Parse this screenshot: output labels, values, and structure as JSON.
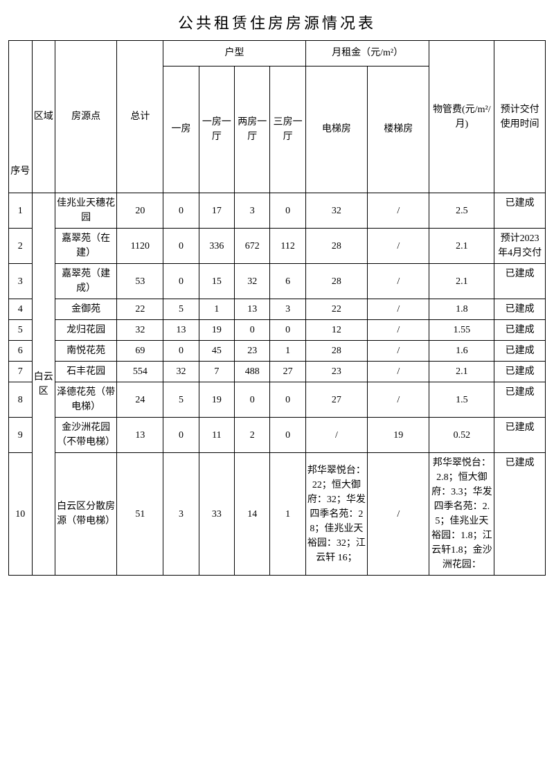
{
  "title": "公共租赁住房房源情况表",
  "headers": {
    "seq": "序号",
    "area": "区域",
    "source": "房源点",
    "total": "总计",
    "room_type_group": "户型",
    "rt1": "一房",
    "rt2": "一房一厅",
    "rt3": "两房一厅",
    "rt4": "三房一厅",
    "rent_group": "月租金（元/m²）",
    "rent_elev": "电梯房",
    "rent_stair": "楼梯房",
    "mgmt_fee": "物管费(元/m²/月)",
    "delivery": "预计交付使用时间"
  },
  "area_label": "白云区",
  "rows": [
    {
      "seq": "1",
      "source": "佳兆业天穗花园",
      "total": "20",
      "rt1": "0",
      "rt2": "17",
      "rt3": "3",
      "rt4": "0",
      "elev": "32",
      "stair": "/",
      "mgmt": "2.5",
      "time": "已建成"
    },
    {
      "seq": "2",
      "source": "嘉翠苑（在建）",
      "total": "1120",
      "rt1": "0",
      "rt2": "336",
      "rt3": "672",
      "rt4": "112",
      "elev": "28",
      "stair": "/",
      "mgmt": "2.1",
      "time": "预计2023年4月交付"
    },
    {
      "seq": "3",
      "source": "嘉翠苑（建成）",
      "total": "53",
      "rt1": "0",
      "rt2": "15",
      "rt3": "32",
      "rt4": "6",
      "elev": "28",
      "stair": "/",
      "mgmt": "2.1",
      "time": "已建成"
    },
    {
      "seq": "4",
      "source": "金御苑",
      "total": "22",
      "rt1": "5",
      "rt2": "1",
      "rt3": "13",
      "rt4": "3",
      "elev": "22",
      "stair": "/",
      "mgmt": "1.8",
      "time": "已建成"
    },
    {
      "seq": "5",
      "source": "龙归花园",
      "total": "32",
      "rt1": "13",
      "rt2": "19",
      "rt3": "0",
      "rt4": "0",
      "elev": "12",
      "stair": "/",
      "mgmt": "1.55",
      "time": "已建成"
    },
    {
      "seq": "6",
      "source": "南悦花苑",
      "total": "69",
      "rt1": "0",
      "rt2": "45",
      "rt3": "23",
      "rt4": "1",
      "elev": "28",
      "stair": "/",
      "mgmt": "1.6",
      "time": "已建成"
    },
    {
      "seq": "7",
      "source": "石丰花园",
      "total": "554",
      "rt1": "32",
      "rt2": "7",
      "rt3": "488",
      "rt4": "27",
      "elev": "23",
      "stair": "/",
      "mgmt": "2.1",
      "time": "已建成"
    },
    {
      "seq": "8",
      "source": "泽德花苑（带电梯）",
      "total": "24",
      "rt1": "5",
      "rt2": "19",
      "rt3": "0",
      "rt4": "0",
      "elev": "27",
      "stair": "/",
      "mgmt": "1.5",
      "time": "已建成"
    },
    {
      "seq": "9",
      "source": "金沙洲花园（不带电梯）",
      "total": "13",
      "rt1": "0",
      "rt2": "11",
      "rt3": "2",
      "rt4": "0",
      "elev": "/",
      "stair": "19",
      "mgmt": "0.52",
      "time": "已建成"
    },
    {
      "seq": "10",
      "source": "白云区分散房源（带电梯）",
      "total": "51",
      "rt1": "3",
      "rt2": "33",
      "rt3": "14",
      "rt4": "1",
      "elev": "邦华翠悦台：22；恒大御府：32；华发四季名苑：28；佳兆业天裕园：32；江云轩 16；",
      "stair": "/",
      "mgmt": "邦华翠悦台：2.8；恒大御府：3.3；华发四季名苑：2.5；佳兆业天裕园：1.8；江云轩1.8；金沙洲花园：",
      "time": "已建成"
    }
  ],
  "style": {
    "background": "#ffffff",
    "text_color": "#000000",
    "border_color": "#000000",
    "title_fontsize": 22,
    "cell_fontsize": 14
  }
}
